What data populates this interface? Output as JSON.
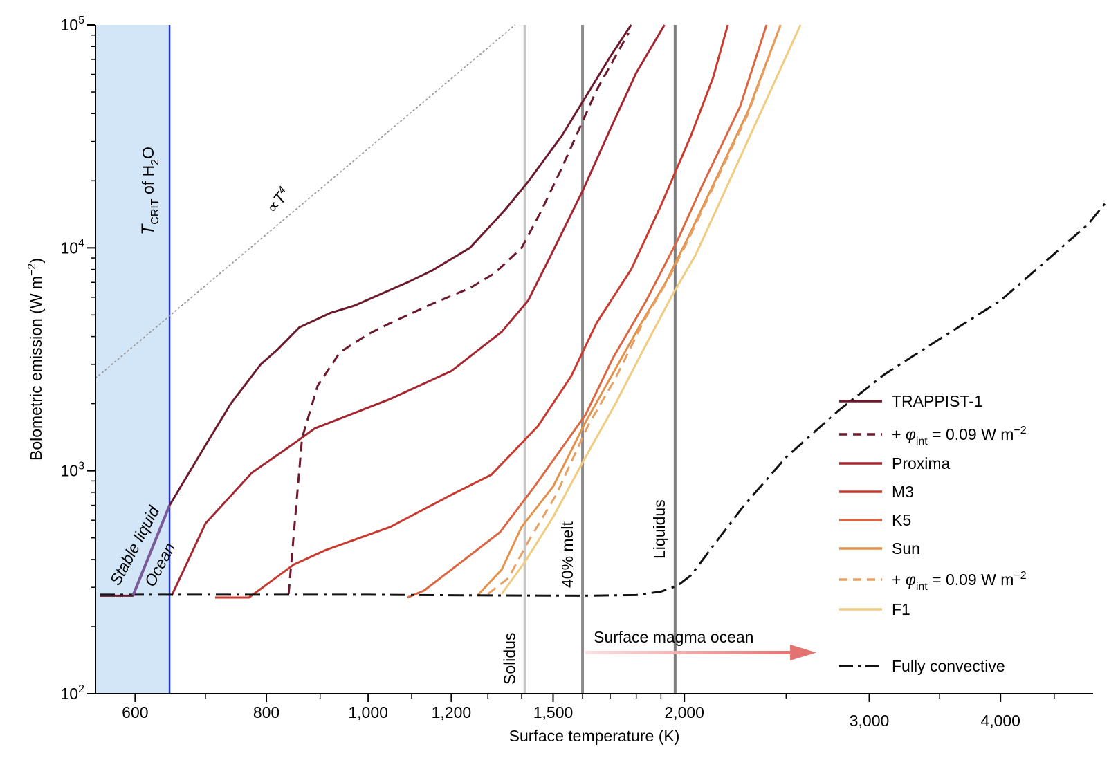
{
  "chart_data": {
    "type": "line",
    "title": "",
    "xlabel": "Surface temperature (K)",
    "ylabel": "Bolometric emission (W m⁻²)",
    "xscale": "log",
    "yscale": "log",
    "xlim": [
      550,
      4900
    ],
    "ylim": [
      100,
      100000
    ],
    "grid": false,
    "legend_position": "right",
    "x_ticks": [
      {
        "value": 600,
        "label": "600"
      },
      {
        "value": 800,
        "label": "800"
      },
      {
        "value": 1000,
        "label": "1,000"
      },
      {
        "value": 1200,
        "label": "1,200"
      },
      {
        "value": 1500,
        "label": "1,500"
      },
      {
        "value": 2000,
        "label": "2,000"
      },
      {
        "value": 3000,
        "label": "3,000"
      },
      {
        "value": 4000,
        "label": "4,000"
      }
    ],
    "y_ticks": [
      {
        "value": 100,
        "base": "10",
        "exp": "2"
      },
      {
        "value": 1000,
        "base": "10",
        "exp": "3"
      },
      {
        "value": 10000,
        "base": "10",
        "exp": "4"
      },
      {
        "value": 100000,
        "base": "10",
        "exp": "5"
      }
    ],
    "series": [
      {
        "name": "TRAPPIST-1",
        "color": "#6b1a2c",
        "dash": "solid",
        "points": [
          [
            555,
            275
          ],
          [
            597,
            275
          ],
          [
            647,
            700
          ],
          [
            700,
            1300
          ],
          [
            740,
            2000
          ],
          [
            790,
            3000
          ],
          [
            820,
            3500
          ],
          [
            860,
            4400
          ],
          [
            920,
            5100
          ],
          [
            970,
            5500
          ],
          [
            1020,
            6100
          ],
          [
            1090,
            7000
          ],
          [
            1150,
            7900
          ],
          [
            1250,
            10000
          ],
          [
            1350,
            14800
          ],
          [
            1420,
            19800
          ],
          [
            1530,
            32000
          ],
          [
            1700,
            72000
          ],
          [
            1780,
            100000
          ]
        ]
      },
      {
        "name": "+ φint = 0.09 W m⁻²",
        "color": "#6b1a2c",
        "dash": "dashed",
        "points": [
          [
            840,
            280
          ],
          [
            865,
            1400
          ],
          [
            895,
            2400
          ],
          [
            940,
            3400
          ],
          [
            1000,
            4100
          ],
          [
            1050,
            4600
          ],
          [
            1150,
            5600
          ],
          [
            1250,
            6600
          ],
          [
            1320,
            7700
          ],
          [
            1400,
            10000
          ],
          [
            1460,
            14500
          ],
          [
            1530,
            23000
          ],
          [
            1650,
            51000
          ],
          [
            1770,
            92000
          ]
        ]
      },
      {
        "name": "Proxima",
        "color": "#a32631",
        "dash": "solid",
        "points": [
          [
            650,
            275
          ],
          [
            700,
            580
          ],
          [
            775,
            980
          ],
          [
            845,
            1300
          ],
          [
            890,
            1550
          ],
          [
            1050,
            2100
          ],
          [
            1200,
            2800
          ],
          [
            1340,
            4200
          ],
          [
            1420,
            5800
          ],
          [
            1500,
            9700
          ],
          [
            1600,
            18000
          ],
          [
            1700,
            34000
          ],
          [
            1800,
            61000
          ],
          [
            1915,
            100000
          ]
        ]
      },
      {
        "name": "M3",
        "color": "#c83a2f",
        "dash": "solid",
        "points": [
          [
            715,
            270
          ],
          [
            770,
            270
          ],
          [
            850,
            380
          ],
          [
            910,
            440
          ],
          [
            1050,
            560
          ],
          [
            1200,
            780
          ],
          [
            1310,
            960
          ],
          [
            1450,
            1580
          ],
          [
            1560,
            2650
          ],
          [
            1650,
            4600
          ],
          [
            1780,
            8000
          ],
          [
            1900,
            15500
          ],
          [
            2030,
            32000
          ],
          [
            2130,
            58000
          ],
          [
            2200,
            100000
          ]
        ]
      },
      {
        "name": "K5",
        "color": "#da6642",
        "dash": "solid",
        "points": [
          [
            1090,
            270
          ],
          [
            1130,
            290
          ],
          [
            1200,
            360
          ],
          [
            1335,
            530
          ],
          [
            1440,
            850
          ],
          [
            1610,
            1780
          ],
          [
            1710,
            3200
          ],
          [
            1840,
            5800
          ],
          [
            1970,
            10800
          ],
          [
            2080,
            19000
          ],
          [
            2260,
            43000
          ],
          [
            2395,
            100000
          ]
        ]
      },
      {
        "name": "Sun",
        "color": "#e4924a",
        "dash": "solid",
        "points": [
          [
            1270,
            275
          ],
          [
            1340,
            360
          ],
          [
            1400,
            560
          ],
          [
            1500,
            850
          ],
          [
            1610,
            1650
          ],
          [
            1700,
            2600
          ],
          [
            1820,
            4600
          ],
          [
            1920,
            7000
          ],
          [
            2020,
            11300
          ],
          [
            2150,
            21000
          ],
          [
            2300,
            41000
          ],
          [
            2470,
            100000
          ]
        ]
      },
      {
        "name": "+ φint = 0.09 W m⁻²",
        "color": "#e6a064",
        "dash": "dashed",
        "points": [
          [
            1300,
            280
          ],
          [
            1360,
            330
          ],
          [
            1420,
            480
          ],
          [
            1510,
            780
          ],
          [
            1620,
            1600
          ],
          [
            1720,
            2600
          ],
          [
            1830,
            4700
          ],
          [
            1930,
            7200
          ],
          [
            2020,
            11000
          ],
          [
            2150,
            20500
          ],
          [
            2300,
            40000
          ],
          [
            2470,
            100000
          ]
        ]
      },
      {
        "name": "F1",
        "color": "#f0cc80",
        "dash": "solid",
        "points": [
          [
            1340,
            280
          ],
          [
            1410,
            390
          ],
          [
            1500,
            620
          ],
          [
            1610,
            1150
          ],
          [
            1720,
            2000
          ],
          [
            1840,
            3700
          ],
          [
            1950,
            6200
          ],
          [
            2050,
            9300
          ],
          [
            2180,
            17500
          ],
          [
            2350,
            38000
          ],
          [
            2580,
            100000
          ]
        ]
      },
      {
        "name": "Fully convective",
        "color": "#111111",
        "dash": "dashdot",
        "points": [
          [
            555,
            278
          ],
          [
            700,
            278
          ],
          [
            1000,
            278
          ],
          [
            1300,
            276
          ],
          [
            1600,
            275
          ],
          [
            1800,
            277
          ],
          [
            1900,
            287
          ],
          [
            1970,
            305
          ],
          [
            2030,
            340
          ],
          [
            2130,
            460
          ],
          [
            2280,
            700
          ],
          [
            2500,
            1150
          ],
          [
            2800,
            1850
          ],
          [
            3100,
            2700
          ],
          [
            3500,
            3900
          ],
          [
            4000,
            5800
          ],
          [
            4500,
            9400
          ],
          [
            4850,
            12800
          ],
          [
            5040,
            16000
          ]
        ]
      }
    ],
    "power_law_line": {
      "label": "∝T4",
      "color": "#999999",
      "dash": "dotted",
      "points": [
        [
          550,
          2600
        ],
        [
          1380,
          100000
        ]
      ]
    },
    "stable_region": {
      "x0": 550,
      "x1": 647,
      "fill": "#d3e6f8",
      "edge_color": "#2238c9",
      "label": "T_CRIT of H2O"
    },
    "stable_liquid_segment": {
      "color": "#7a5a9a",
      "points": [
        [
          597,
          275
        ],
        [
          647,
          700
        ]
      ]
    },
    "vertical_lines": [
      {
        "x": 1410,
        "label": "Solidus",
        "color": "#c6c6c6"
      },
      {
        "x": 1600,
        "label": "40% melt",
        "color": "#8c8c8c"
      },
      {
        "x": 1960,
        "label": "Liquidus",
        "color": "#7d7d7d"
      }
    ],
    "annotations": {
      "tcrit": {
        "T": "T",
        "sub": "CRIT",
        "mid": " of H",
        "sub2": "2",
        "end": "O"
      },
      "power_law": {
        "prefix": "∝",
        "var": "T",
        "exp": "4"
      },
      "stable_liquid": "Stable liquid",
      "ocean": "Ocean",
      "magma_ocean": "Surface magma ocean",
      "solidus": "Solidus",
      "melt40": "40% melt",
      "liquidus": "Liquidus"
    },
    "legend": [
      {
        "label": "TRAPPIST-1",
        "color": "#6b1a2c",
        "dash": "solid"
      },
      {
        "prefix": "+ ",
        "phi": "φ",
        "sub": "int",
        "mid": " = 0.09 W m",
        "sup": "−2",
        "color": "#6b1a2c",
        "dash": "dashed"
      },
      {
        "label": "Proxima",
        "color": "#a32631",
        "dash": "solid"
      },
      {
        "label": "M3",
        "color": "#c83a2f",
        "dash": "solid"
      },
      {
        "label": "K5",
        "color": "#da6642",
        "dash": "solid"
      },
      {
        "label": "Sun",
        "color": "#e4924a",
        "dash": "solid"
      },
      {
        "prefix": "+ ",
        "phi": "φ",
        "sub": "int",
        "mid": " = 0.09 W m",
        "sup": "−2",
        "color": "#e6a064",
        "dash": "dashed"
      },
      {
        "label": "F1",
        "color": "#f0cc80",
        "dash": "solid"
      },
      {
        "label": "Fully convective",
        "color": "#111111",
        "dash": "dashdot"
      }
    ],
    "axis_labels": {
      "x": "Surface temperature (K)",
      "y_pre": "Bolometric emission (W m",
      "y_sup": "−2",
      "y_post": ")"
    }
  }
}
